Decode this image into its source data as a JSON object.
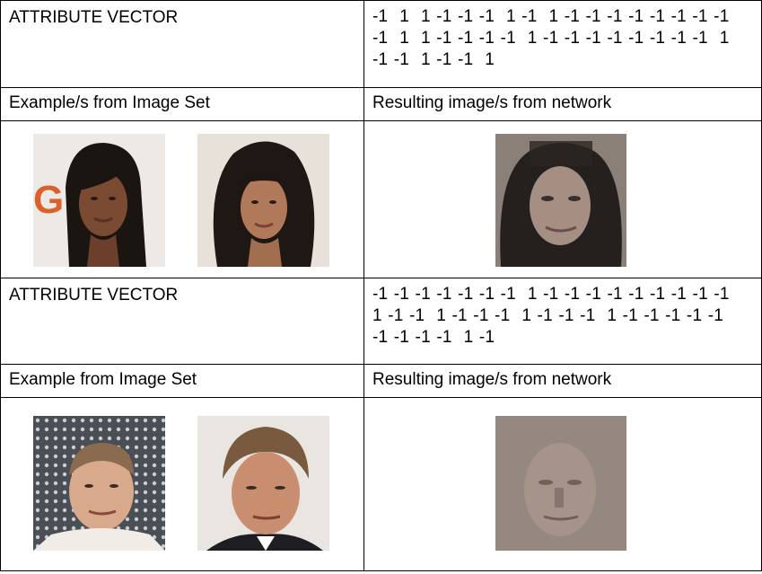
{
  "section1": {
    "attr_label": "ATTRIBUTE VECTOR",
    "vector_lines": [
      "-1  1  1 -1 -1 -1  1 -1  1 -1 -1 -1 -1 -1 -1 -1 -1",
      "-1  1  1 -1 -1 -1 -1  1 -1 -1 -1 -1 -1 -1 -1 -1  1",
      "-1 -1  1 -1 -1  1"
    ],
    "examples_header": "Example/s from Image Set",
    "results_header": "Resulting image/s from network",
    "example_images": [
      "woman-face-photo-1",
      "woman-face-photo-2"
    ],
    "result_image": "generated-woman-face"
  },
  "section2": {
    "attr_label": "ATTRIBUTE VECTOR",
    "vector_lines": [
      "-1 -1 -1 -1 -1 -1 -1  1 -1 -1 -1 -1 -1 -1 -1 -1 -1",
      "1 -1 -1  1 -1 -1 -1  1 -1 -1 -1  1 -1 -1 -1 -1 -1",
      "-1 -1 -1 -1  1 -1"
    ],
    "examples_header": "Example from Image Set",
    "results_header": "Resulting image/s from network",
    "example_images": [
      "man-face-photo-1",
      "man-face-photo-2"
    ],
    "result_image": "generated-man-face"
  }
}
